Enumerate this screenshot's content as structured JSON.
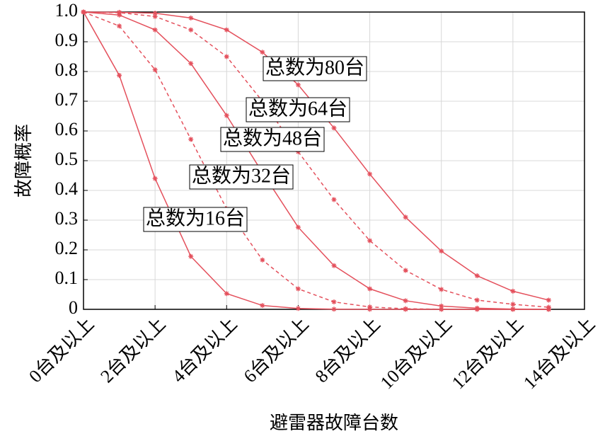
{
  "chart_data": {
    "type": "line",
    "y_label": "故障概率",
    "x_label": "避雷器故障台数",
    "x": [
      0,
      1,
      2,
      3,
      4,
      5,
      6,
      7,
      8,
      9,
      10,
      11,
      12,
      13
    ],
    "xlim": [
      0,
      14
    ],
    "xticks": [
      {
        "value": 0,
        "label": "0台及以上"
      },
      {
        "value": 2,
        "label": "2台及以上"
      },
      {
        "value": 4,
        "label": "4台及以上"
      },
      {
        "value": 6,
        "label": "6台及以上"
      },
      {
        "value": 8,
        "label": "8台及以上"
      },
      {
        "value": 10,
        "label": "10台及以上"
      },
      {
        "value": 12,
        "label": "12台及以上"
      },
      {
        "value": 14,
        "label": "14台及以上"
      }
    ],
    "ylim": [
      0,
      1
    ],
    "yticks": [
      0,
      0.1,
      0.2,
      0.3,
      0.4,
      0.5,
      0.6,
      0.7,
      0.8,
      0.9,
      {
        "value": 1,
        "label": "1.0"
      }
    ],
    "grid": true,
    "series": [
      {
        "name": "总数为80台",
        "color": "#e4505c",
        "linestyle": "solid",
        "values": [
          1,
          0.999,
          0.996,
          0.98,
          0.94,
          0.865,
          0.755,
          0.61,
          0.455,
          0.31,
          0.196,
          0.113,
          0.061,
          0.031
        ]
      },
      {
        "name": "总数为64台",
        "color": "#e4505c",
        "linestyle": "dashed",
        "values": [
          1,
          0.998,
          0.985,
          0.94,
          0.85,
          0.7,
          0.53,
          0.369,
          0.231,
          0.131,
          0.067,
          0.031,
          0.017,
          0.007
        ]
      },
      {
        "name": "总数为48台",
        "color": "#e4505c",
        "linestyle": "solid",
        "values": [
          1,
          0.99,
          0.94,
          0.827,
          0.652,
          0.46,
          0.276,
          0.147,
          0.069,
          0.029,
          0.011,
          0.004,
          0.001,
          0.0003
        ]
      },
      {
        "name": "总数为32台",
        "color": "#e4505c",
        "linestyle": "dashed",
        "values": [
          1,
          0.953,
          0.806,
          0.572,
          0.338,
          0.166,
          0.069,
          0.025,
          0.008,
          0.002,
          0.0005,
          0.0001,
          0,
          0
        ]
      },
      {
        "name": "总数为16台",
        "color": "#e4505c",
        "linestyle": "solid",
        "values": [
          1,
          0.787,
          0.44,
          0.178,
          0.053,
          0.013,
          0.003,
          0.0005,
          0.0001,
          0,
          0,
          0,
          0,
          0
        ]
      }
    ]
  }
}
